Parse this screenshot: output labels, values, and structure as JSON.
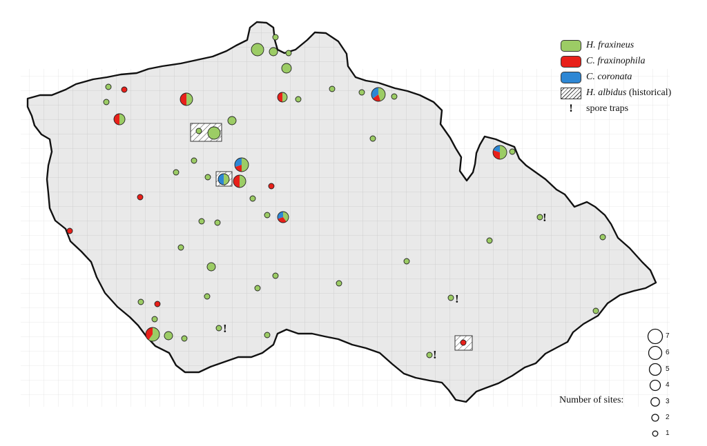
{
  "colors": {
    "h_fraxineus": "#9ccc65",
    "c_fraxinophila": "#e8201a",
    "c_coronata": "#2e87d4",
    "land": "#e9e9e9",
    "grid": "#c9c9c9"
  },
  "legend": {
    "items": [
      {
        "species": "H. fraxineus",
        "suffix": "",
        "kind": "green"
      },
      {
        "species": "C. fraxinophila",
        "suffix": "",
        "kind": "red"
      },
      {
        "species": "C. coronata",
        "suffix": "",
        "kind": "blue"
      },
      {
        "species": "H. albidus",
        "suffix": " (historical)",
        "kind": "hatch"
      }
    ],
    "spore_traps_label": "spore traps",
    "spore_trap_symbol": "!"
  },
  "size_legend": {
    "title": "Number of sites:",
    "labels": [
      "7",
      "6",
      "5",
      "4",
      "3",
      "2",
      "1"
    ]
  }
}
